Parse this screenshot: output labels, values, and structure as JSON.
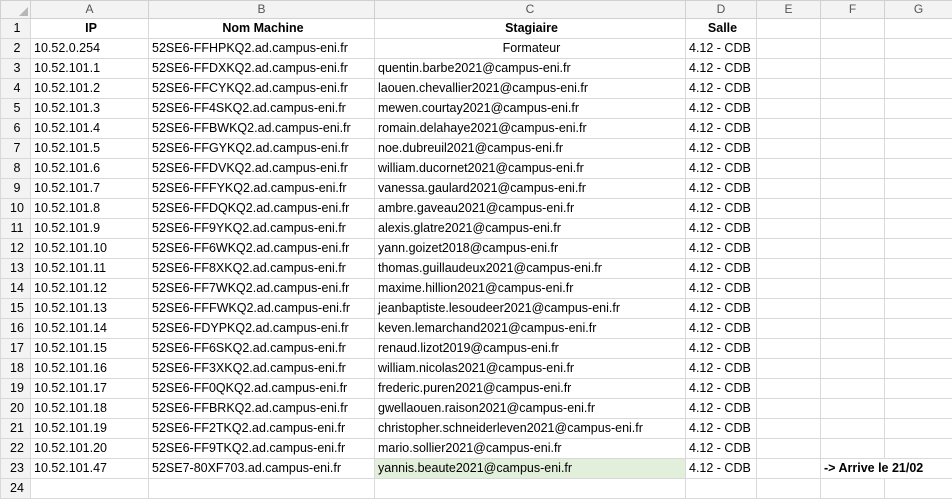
{
  "columns": [
    "A",
    "B",
    "C",
    "D",
    "E",
    "F",
    "G"
  ],
  "header": {
    "row": "1",
    "ip": "IP",
    "machine": "Nom Machine",
    "trainee": "Stagiaire",
    "room": "Salle"
  },
  "rows": [
    {
      "n": "2",
      "ip": "10.52.0.254",
      "machine": "52SE6-FFHPKQ2.ad.campus-eni.fr",
      "trainee": "Formateur",
      "room": "4.12 - CDB"
    },
    {
      "n": "3",
      "ip": "10.52.101.1",
      "machine": "52SE6-FFDXKQ2.ad.campus-eni.fr",
      "trainee": "quentin.barbe2021@campus-eni.fr",
      "room": "4.12 - CDB"
    },
    {
      "n": "4",
      "ip": "10.52.101.2",
      "machine": "52SE6-FFCYKQ2.ad.campus-eni.fr",
      "trainee": "laouen.chevallier2021@campus-eni.fr",
      "room": "4.12 - CDB"
    },
    {
      "n": "5",
      "ip": "10.52.101.3",
      "machine": "52SE6-FF4SKQ2.ad.campus-eni.fr",
      "trainee": "mewen.courtay2021@campus-eni.fr",
      "room": "4.12 - CDB"
    },
    {
      "n": "6",
      "ip": "10.52.101.4",
      "machine": "52SE6-FFBWKQ2.ad.campus-eni.fr",
      "trainee": "romain.delahaye2021@campus-eni.fr",
      "room": "4.12 - CDB"
    },
    {
      "n": "7",
      "ip": "10.52.101.5",
      "machine": "52SE6-FFGYKQ2.ad.campus-eni.fr",
      "trainee": "noe.dubreuil2021@campus-eni.fr",
      "room": "4.12 - CDB"
    },
    {
      "n": "8",
      "ip": "10.52.101.6",
      "machine": "52SE6-FFDVKQ2.ad.campus-eni.fr",
      "trainee": "william.ducornet2021@campus-eni.fr",
      "room": "4.12 - CDB"
    },
    {
      "n": "9",
      "ip": "10.52.101.7",
      "machine": "52SE6-FFFYKQ2.ad.campus-eni.fr",
      "trainee": "vanessa.gaulard2021@campus-eni.fr",
      "room": "4.12 - CDB"
    },
    {
      "n": "10",
      "ip": "10.52.101.8",
      "machine": "52SE6-FFDQKQ2.ad.campus-eni.fr",
      "trainee": "ambre.gaveau2021@campus-eni.fr",
      "room": "4.12 - CDB"
    },
    {
      "n": "11",
      "ip": "10.52.101.9",
      "machine": "52SE6-FF9YKQ2.ad.campus-eni.fr",
      "trainee": "alexis.glatre2021@campus-eni.fr",
      "room": "4.12 - CDB"
    },
    {
      "n": "12",
      "ip": "10.52.101.10",
      "machine": "52SE6-FF6WKQ2.ad.campus-eni.fr",
      "trainee": "yann.goizet2018@campus-eni.fr",
      "room": "4.12 - CDB"
    },
    {
      "n": "13",
      "ip": "10.52.101.11",
      "machine": "52SE6-FF8XKQ2.ad.campus-eni.fr",
      "trainee": "thomas.guillaudeux2021@campus-eni.fr",
      "room": "4.12 - CDB"
    },
    {
      "n": "14",
      "ip": "10.52.101.12",
      "machine": "52SE6-FF7WKQ2.ad.campus-eni.fr",
      "trainee": "maxime.hillion2021@campus-eni.fr",
      "room": "4.12 - CDB"
    },
    {
      "n": "15",
      "ip": "10.52.101.13",
      "machine": "52SE6-FFFWKQ2.ad.campus-eni.fr",
      "trainee": "jeanbaptiste.lesoudeer2021@campus-eni.fr",
      "room": "4.12 - CDB"
    },
    {
      "n": "16",
      "ip": "10.52.101.14",
      "machine": "52SE6-FDYPKQ2.ad.campus-eni.fr",
      "trainee": "keven.lemarchand2021@campus-eni.fr",
      "room": "4.12 - CDB"
    },
    {
      "n": "17",
      "ip": "10.52.101.15",
      "machine": "52SE6-FF6SKQ2.ad.campus-eni.fr",
      "trainee": "renaud.lizot2019@campus-eni.fr",
      "room": "4.12 - CDB"
    },
    {
      "n": "18",
      "ip": "10.52.101.16",
      "machine": "52SE6-FF3XKQ2.ad.campus-eni.fr",
      "trainee": "william.nicolas2021@campus-eni.fr",
      "room": "4.12 - CDB"
    },
    {
      "n": "19",
      "ip": "10.52.101.17",
      "machine": "52SE6-FF0QKQ2.ad.campus-eni.fr",
      "trainee": "frederic.puren2021@campus-eni.fr",
      "room": "4.12 - CDB"
    },
    {
      "n": "20",
      "ip": "10.52.101.18",
      "machine": "52SE6-FFBRKQ2.ad.campus-eni.fr",
      "trainee": "gwellaouen.raison2021@campus-eni.fr",
      "room": "4.12 - CDB"
    },
    {
      "n": "21",
      "ip": "10.52.101.19",
      "machine": "52SE6-FF2TKQ2.ad.campus-eni.fr",
      "trainee": "christopher.schneiderleven2021@campus-eni.fr",
      "room": "4.12 - CDB"
    },
    {
      "n": "22",
      "ip": "10.52.101.20",
      "machine": "52SE6-FF9TKQ2.ad.campus-eni.fr",
      "trainee": "mario.sollier2021@campus-eni.fr",
      "room": "4.12 - CDB"
    },
    {
      "n": "23",
      "ip": "10.52.101.47",
      "machine": "52SE7-80XF703.ad.campus-eni.fr",
      "trainee": "yannis.beaute2021@campus-eni.fr",
      "room": "4.12 - CDB",
      "note": "-> Arrive le 21/02"
    }
  ],
  "empty_row": "24",
  "colors": {
    "highlight": "#e2efda",
    "note_text": "#548235"
  }
}
